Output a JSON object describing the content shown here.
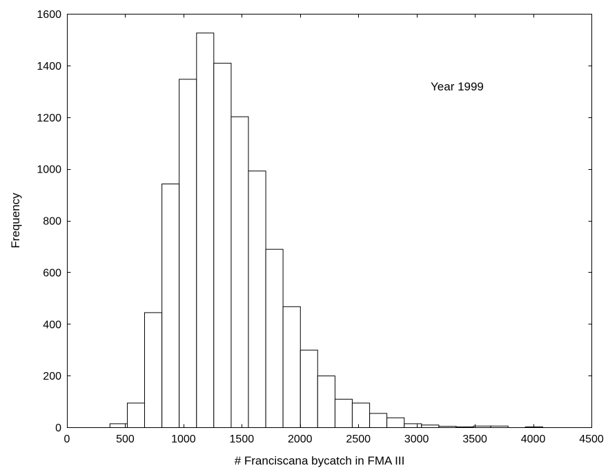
{
  "chart_data": {
    "type": "bar",
    "subtype": "histogram",
    "annotation": "Year 1999",
    "xlabel": "# Franciscana bycatch in FMA III",
    "ylabel": "Frequency",
    "xlim": [
      0,
      4500
    ],
    "ylim": [
      0,
      1600
    ],
    "xticks": [
      0,
      500,
      1000,
      1500,
      2000,
      2500,
      3000,
      3500,
      4000,
      4500
    ],
    "yticks": [
      0,
      200,
      400,
      600,
      800,
      1000,
      1200,
      1400,
      1600
    ],
    "bar_fill": "#ffffff",
    "bar_edge": "#000000",
    "grid": false,
    "bins": [
      {
        "x0": 366,
        "x1": 515,
        "value": 15
      },
      {
        "x0": 515,
        "x1": 663,
        "value": 95
      },
      {
        "x0": 663,
        "x1": 812,
        "value": 445
      },
      {
        "x0": 812,
        "x1": 960,
        "value": 943
      },
      {
        "x0": 960,
        "x1": 1109,
        "value": 1348
      },
      {
        "x0": 1109,
        "x1": 1257,
        "value": 1527
      },
      {
        "x0": 1257,
        "x1": 1406,
        "value": 1410
      },
      {
        "x0": 1406,
        "x1": 1554,
        "value": 1203
      },
      {
        "x0": 1554,
        "x1": 1703,
        "value": 993
      },
      {
        "x0": 1703,
        "x1": 1851,
        "value": 690
      },
      {
        "x0": 1851,
        "x1": 2000,
        "value": 468
      },
      {
        "x0": 2000,
        "x1": 2148,
        "value": 300
      },
      {
        "x0": 2148,
        "x1": 2297,
        "value": 200
      },
      {
        "x0": 2297,
        "x1": 2445,
        "value": 110
      },
      {
        "x0": 2445,
        "x1": 2594,
        "value": 95
      },
      {
        "x0": 2594,
        "x1": 2742,
        "value": 55
      },
      {
        "x0": 2742,
        "x1": 2891,
        "value": 38
      },
      {
        "x0": 2891,
        "x1": 3039,
        "value": 15
      },
      {
        "x0": 3039,
        "x1": 3188,
        "value": 10
      },
      {
        "x0": 3188,
        "x1": 3336,
        "value": 5
      },
      {
        "x0": 3336,
        "x1": 3485,
        "value": 3
      },
      {
        "x0": 3485,
        "x1": 3633,
        "value": 6
      },
      {
        "x0": 3633,
        "x1": 3782,
        "value": 6
      },
      {
        "x0": 3782,
        "x1": 3930,
        "value": 0
      },
      {
        "x0": 3930,
        "x1": 4079,
        "value": 3
      }
    ]
  }
}
